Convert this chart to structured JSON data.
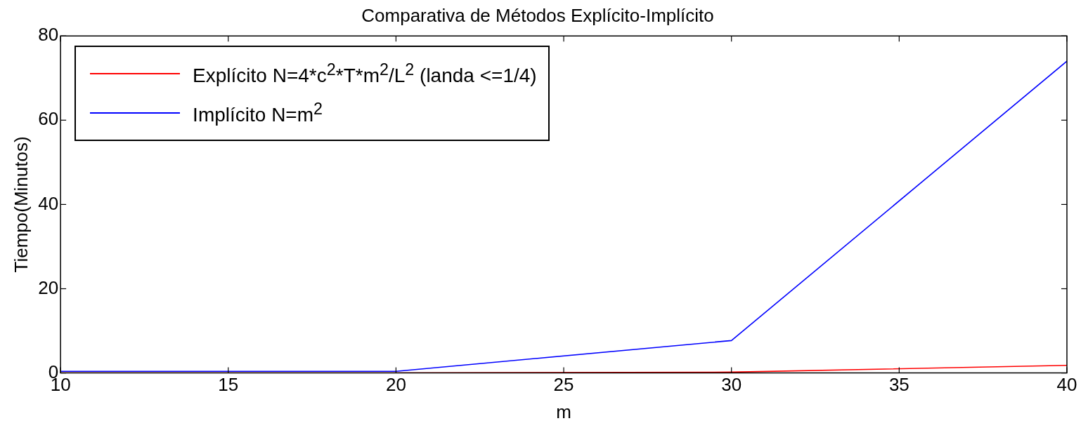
{
  "chart_data": {
    "type": "line",
    "title": "Comparativa de Métodos Explícito-Implícito",
    "xlabel": "m",
    "ylabel": "Tiempo(Minutos)",
    "x": [
      10,
      20,
      30,
      40
    ],
    "series": [
      {
        "name": "Explícito N=4*c$^{2}$*T*m$^{2}$/L$^{2}$ (landa <=1/4)",
        "color": "#ff0000",
        "values": [
          0,
          0,
          0.2,
          1.8
        ]
      },
      {
        "name": "Implícito N=m$^{2}$",
        "color": "#0000ff",
        "values": [
          0.4,
          0.4,
          7.7,
          74
        ]
      }
    ],
    "xlim": [
      10,
      40
    ],
    "xticks": [
      10,
      15,
      20,
      25,
      30,
      35,
      40
    ],
    "ylim": [
      0,
      80
    ],
    "yticks": [
      0,
      20,
      40,
      60,
      80
    ],
    "grid": false,
    "legend": "top left",
    "marker": "none",
    "line_style": "solid"
  }
}
